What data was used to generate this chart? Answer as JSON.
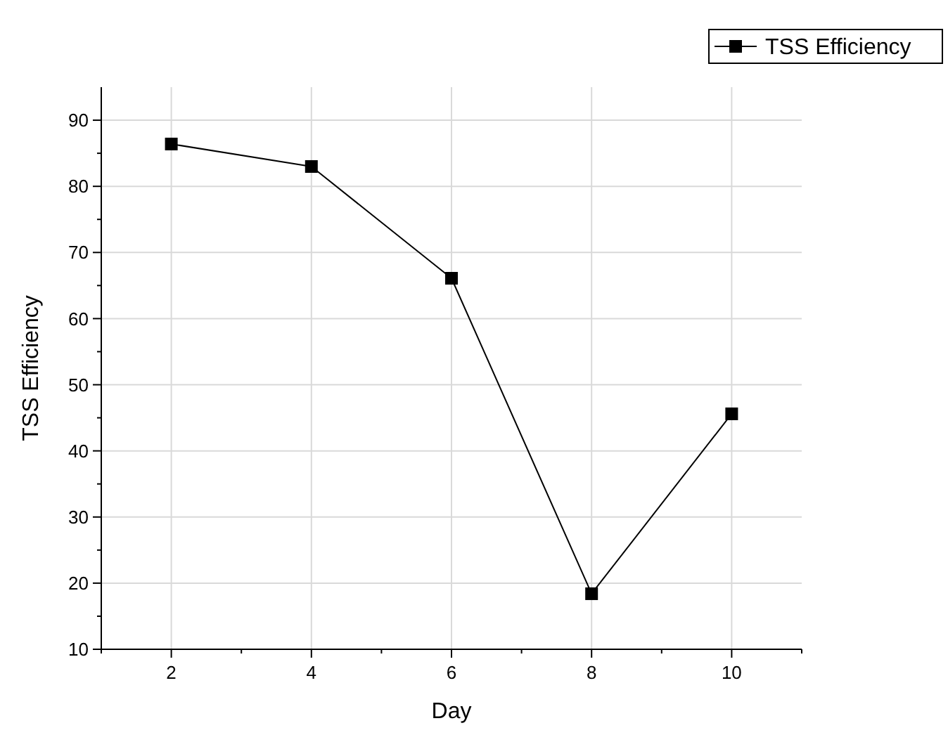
{
  "chart_data": {
    "type": "line",
    "xlabel": "Day",
    "ylabel": "TSS Efficiency",
    "x": [
      2,
      4,
      6,
      8,
      10
    ],
    "series": [
      {
        "name": "TSS Efficiency",
        "color": "#000000",
        "values": [
          86.4,
          83.0,
          66.1,
          18.4,
          45.6
        ]
      }
    ],
    "xlim": [
      1,
      11
    ],
    "ylim": [
      10,
      95
    ],
    "xticks": [
      {
        "value": 1,
        "label": null
      },
      2,
      {
        "value": 3,
        "label": null
      },
      4,
      {
        "value": 5,
        "label": null
      },
      6,
      {
        "value": 7,
        "label": null
      },
      8,
      {
        "value": 9,
        "label": null
      },
      10,
      {
        "value": 11,
        "label": null
      }
    ],
    "yticks": [
      10,
      {
        "value": 15,
        "label": null
      },
      20,
      {
        "value": 25,
        "label": null
      },
      30,
      {
        "value": 35,
        "label": null
      },
      40,
      {
        "value": 45,
        "label": null
      },
      50,
      {
        "value": 55,
        "label": null
      },
      60,
      {
        "value": 65,
        "label": null
      },
      70,
      {
        "value": 75,
        "label": null
      },
      80,
      {
        "value": 85,
        "label": null
      },
      90
    ],
    "grid": true,
    "legend": "top right",
    "marker": "square",
    "line_style": "solid"
  }
}
